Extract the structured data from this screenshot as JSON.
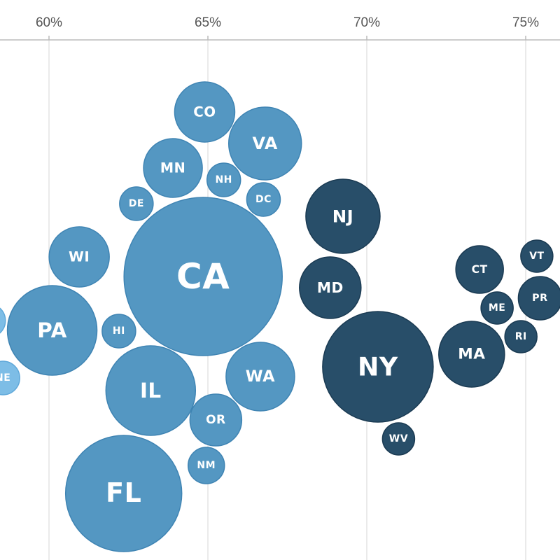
{
  "chart_data": {
    "type": "scatter",
    "x_axis": {
      "ticks": [
        {
          "value": 60,
          "label": "60%"
        },
        {
          "value": 65,
          "label": "65%"
        },
        {
          "value": 70,
          "label": "70%"
        },
        {
          "value": 75,
          "label": "75%"
        }
      ],
      "position": "top"
    },
    "grid": true,
    "colors": {
      "light": "#7dbde6",
      "medium": "#5497c2",
      "dark": "#284e69",
      "grid": "#dddddd",
      "axis": "#bbbbbb"
    },
    "bubbles": [
      {
        "label": "CA",
        "x": 64.85,
        "size": 113,
        "group": "medium"
      },
      {
        "label": "FL",
        "x": 62.35,
        "size": 83,
        "group": "medium"
      },
      {
        "label": "IL",
        "x": 63.2,
        "size": 64,
        "group": "medium"
      },
      {
        "label": "PA",
        "x": 60.1,
        "size": 64,
        "group": "medium"
      },
      {
        "label": "VA",
        "x": 66.8,
        "size": 52,
        "group": "medium"
      },
      {
        "label": "WA",
        "x": 66.65,
        "size": 49,
        "group": "medium"
      },
      {
        "label": "CO",
        "x": 64.9,
        "size": 43,
        "group": "medium"
      },
      {
        "label": "MN",
        "x": 63.9,
        "size": 42,
        "group": "medium"
      },
      {
        "label": "WI",
        "x": 60.95,
        "size": 43,
        "group": "medium"
      },
      {
        "label": "OR",
        "x": 65.25,
        "size": 37,
        "group": "medium"
      },
      {
        "label": "NM",
        "x": 64.95,
        "size": 26,
        "group": "medium"
      },
      {
        "label": "NH",
        "x": 65.5,
        "size": 24,
        "group": "medium"
      },
      {
        "label": "DC",
        "x": 66.75,
        "size": 24,
        "group": "medium"
      },
      {
        "label": "DE",
        "x": 62.75,
        "size": 24,
        "group": "medium"
      },
      {
        "label": "HI",
        "x": 62.2,
        "size": 24,
        "group": "medium"
      },
      {
        "label": "NE",
        "x": 58.55,
        "size": 24,
        "group": "light"
      },
      {
        "label": "",
        "x": 58.1,
        "size": 24,
        "group": "light"
      },
      {
        "label": "NY",
        "x": 70.35,
        "size": 79,
        "group": "dark"
      },
      {
        "label": "NJ",
        "x": 69.25,
        "size": 53,
        "group": "dark"
      },
      {
        "label": "MD",
        "x": 68.85,
        "size": 44,
        "group": "dark"
      },
      {
        "label": "MA",
        "x": 73.3,
        "size": 47,
        "group": "dark"
      },
      {
        "label": "CT",
        "x": 73.55,
        "size": 34,
        "group": "dark"
      },
      {
        "label": "PR",
        "x": 75.45,
        "size": 31,
        "group": "dark"
      },
      {
        "label": "ME",
        "x": 74.1,
        "size": 23,
        "group": "dark"
      },
      {
        "label": "RI",
        "x": 74.85,
        "size": 23,
        "group": "dark"
      },
      {
        "label": "VT",
        "x": 75.35,
        "size": 23,
        "group": "dark"
      },
      {
        "label": "WV",
        "x": 71.0,
        "size": 23,
        "group": "dark"
      }
    ]
  }
}
